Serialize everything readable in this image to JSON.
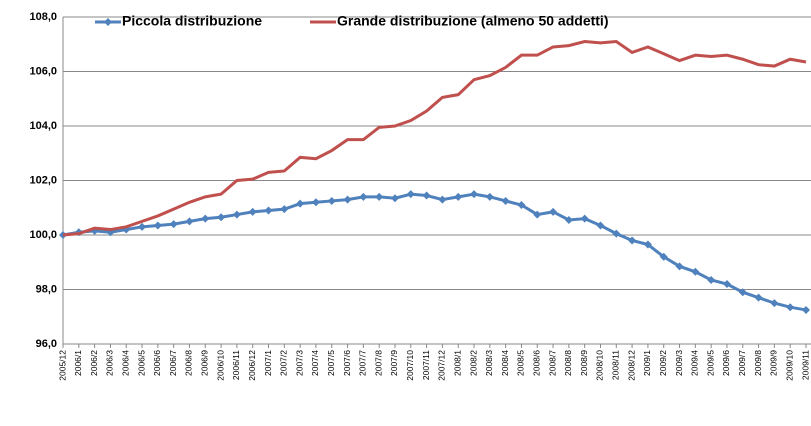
{
  "chart_data": {
    "type": "line",
    "categories": [
      "2005/12",
      "2006/1",
      "2006/2",
      "2006/3",
      "2006/4",
      "2006/5",
      "2006/6",
      "2006/7",
      "2006/8",
      "2006/9",
      "2006/10",
      "2006/11",
      "2006/12",
      "2007/1",
      "2007/2",
      "2007/3",
      "2007/4",
      "2007/5",
      "2007/6",
      "2007/7",
      "2007/8",
      "2007/9",
      "2007/10",
      "2007/11",
      "2007/12",
      "2008/1",
      "2008/2",
      "2008/3",
      "2008/4",
      "2008/5",
      "2008/6",
      "2008/7",
      "2008/8",
      "2008/9",
      "2008/10",
      "2008/11",
      "2008/12",
      "2009/1",
      "2009/2",
      "2009/3",
      "2009/4",
      "2009/5",
      "2009/6",
      "2009/7",
      "2009/8",
      "2009/9",
      "2009/10",
      "2009/11"
    ],
    "series": [
      {
        "name": "Piccola distribuzione",
        "color": "#4f81bd",
        "marker": "diamond",
        "values": [
          100.0,
          100.1,
          100.15,
          100.1,
          100.2,
          100.3,
          100.35,
          100.4,
          100.5,
          100.6,
          100.65,
          100.75,
          100.85,
          100.9,
          100.95,
          101.15,
          101.2,
          101.25,
          101.3,
          101.4,
          101.4,
          101.35,
          101.5,
          101.45,
          101.3,
          101.4,
          101.5,
          101.4,
          101.25,
          101.1,
          100.75,
          100.85,
          100.55,
          100.6,
          100.35,
          100.05,
          99.8,
          99.65,
          99.2,
          98.85,
          98.65,
          98.35,
          98.2,
          97.9,
          97.7,
          97.5,
          97.35,
          97.25
        ]
      },
      {
        "name": "Grande distribuzione  (almeno 50 addetti)",
        "color": "#c0504d",
        "values": [
          100.0,
          100.05,
          100.25,
          100.2,
          100.3,
          100.5,
          100.7,
          100.95,
          101.2,
          101.4,
          101.5,
          102.0,
          102.05,
          102.3,
          102.35,
          102.85,
          102.8,
          103.1,
          103.5,
          103.5,
          103.95,
          104.0,
          104.2,
          104.55,
          105.05,
          105.15,
          105.7,
          105.85,
          106.15,
          106.6,
          106.6,
          106.9,
          106.95,
          107.1,
          107.05,
          107.1,
          106.7,
          106.9,
          106.65,
          106.4,
          106.6,
          106.55,
          106.6,
          106.45,
          106.25,
          106.2,
          106.45,
          106.35
        ]
      }
    ],
    "ylim": [
      96,
      108
    ],
    "yticks": [
      {
        "value": 96,
        "label": "96,0"
      },
      {
        "value": 98,
        "label": "98,0"
      },
      {
        "value": 100,
        "label": "100,0"
      },
      {
        "value": 102,
        "label": "102,0"
      },
      {
        "value": 104,
        "label": "104,0"
      },
      {
        "value": 106,
        "label": "106,0"
      },
      {
        "value": 108,
        "label": "108,0"
      }
    ],
    "grid": true
  }
}
